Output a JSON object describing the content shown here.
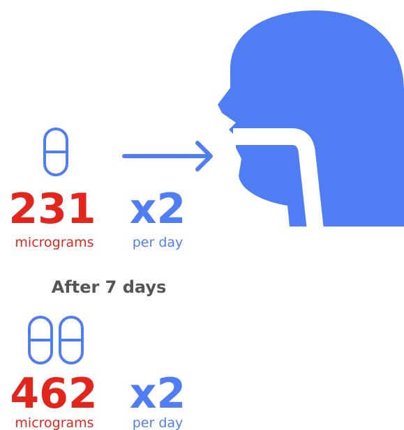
{
  "dose_1": {
    "amount": "231",
    "unit": "micrograms",
    "times": "x2",
    "frequency": "per day"
  },
  "heading": "After 7 days",
  "dose_2": {
    "amount": "462",
    "unit": "micrograms",
    "times": "x2",
    "frequency": "per day"
  }
}
